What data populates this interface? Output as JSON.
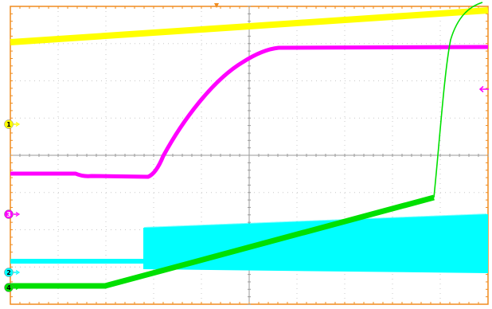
{
  "channels": [
    {
      "id": "yellow",
      "marker": "1",
      "color": "#ffff00",
      "shape": "step-ramp",
      "markerTextColor": "#000000"
    },
    {
      "id": "magenta",
      "marker": "3",
      "color": "#ff00ff",
      "shape": "rise-plateau",
      "markerTextColor": "#ffffff"
    },
    {
      "id": "cyan",
      "marker": "2",
      "color": "#00ffff",
      "shape": "noise-band",
      "markerTextColor": "#000000"
    },
    {
      "id": "green",
      "marker": "4",
      "color": "#00e000",
      "shape": "ramp-then-spike",
      "markerTextColor": "#000000"
    }
  ],
  "colors": {
    "frame": "#f08c1e",
    "grid": "#c8c8c8",
    "background": "#ffffff",
    "triggerMarker": "#f08c1e"
  },
  "grid": {
    "divisionsX": 10,
    "divisionsY": 8
  },
  "icons": {
    "triggerPosition": "down-triangle-icon",
    "magentaReference": "left-arrow-icon"
  }
}
